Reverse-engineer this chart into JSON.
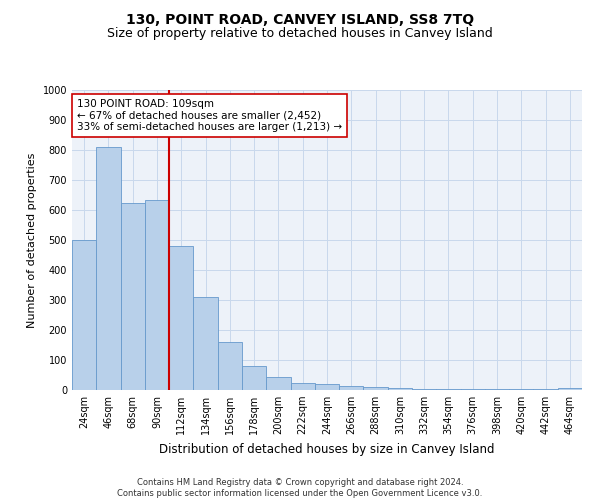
{
  "title": "130, POINT ROAD, CANVEY ISLAND, SS8 7TQ",
  "subtitle": "Size of property relative to detached houses in Canvey Island",
  "xlabel": "Distribution of detached houses by size in Canvey Island",
  "ylabel": "Number of detached properties",
  "footer_line1": "Contains HM Land Registry data © Crown copyright and database right 2024.",
  "footer_line2": "Contains public sector information licensed under the Open Government Licence v3.0.",
  "categories": [
    "24sqm",
    "46sqm",
    "68sqm",
    "90sqm",
    "112sqm",
    "134sqm",
    "156sqm",
    "178sqm",
    "200sqm",
    "222sqm",
    "244sqm",
    "266sqm",
    "288sqm",
    "310sqm",
    "332sqm",
    "354sqm",
    "376sqm",
    "398sqm",
    "420sqm",
    "442sqm",
    "464sqm"
  ],
  "values": [
    500,
    810,
    625,
    635,
    480,
    310,
    160,
    80,
    43,
    22,
    20,
    15,
    10,
    8,
    5,
    4,
    3,
    2,
    2,
    2,
    8
  ],
  "bar_color": "#b8d0ea",
  "bar_edge_color": "#6699cc",
  "vline_color": "#cc0000",
  "annotation_text": "130 POINT ROAD: 109sqm\n← 67% of detached houses are smaller (2,452)\n33% of semi-detached houses are larger (1,213) →",
  "annotation_box_color": "#ffffff",
  "annotation_box_edge_color": "#cc0000",
  "ylim": [
    0,
    1000
  ],
  "yticks": [
    0,
    100,
    200,
    300,
    400,
    500,
    600,
    700,
    800,
    900,
    1000
  ],
  "grid_color": "#c8d8ec",
  "bg_color": "#edf2f9",
  "title_fontsize": 10,
  "subtitle_fontsize": 9,
  "tick_fontsize": 7,
  "ylabel_fontsize": 8,
  "xlabel_fontsize": 8.5,
  "footer_fontsize": 6,
  "annotation_fontsize": 7.5
}
